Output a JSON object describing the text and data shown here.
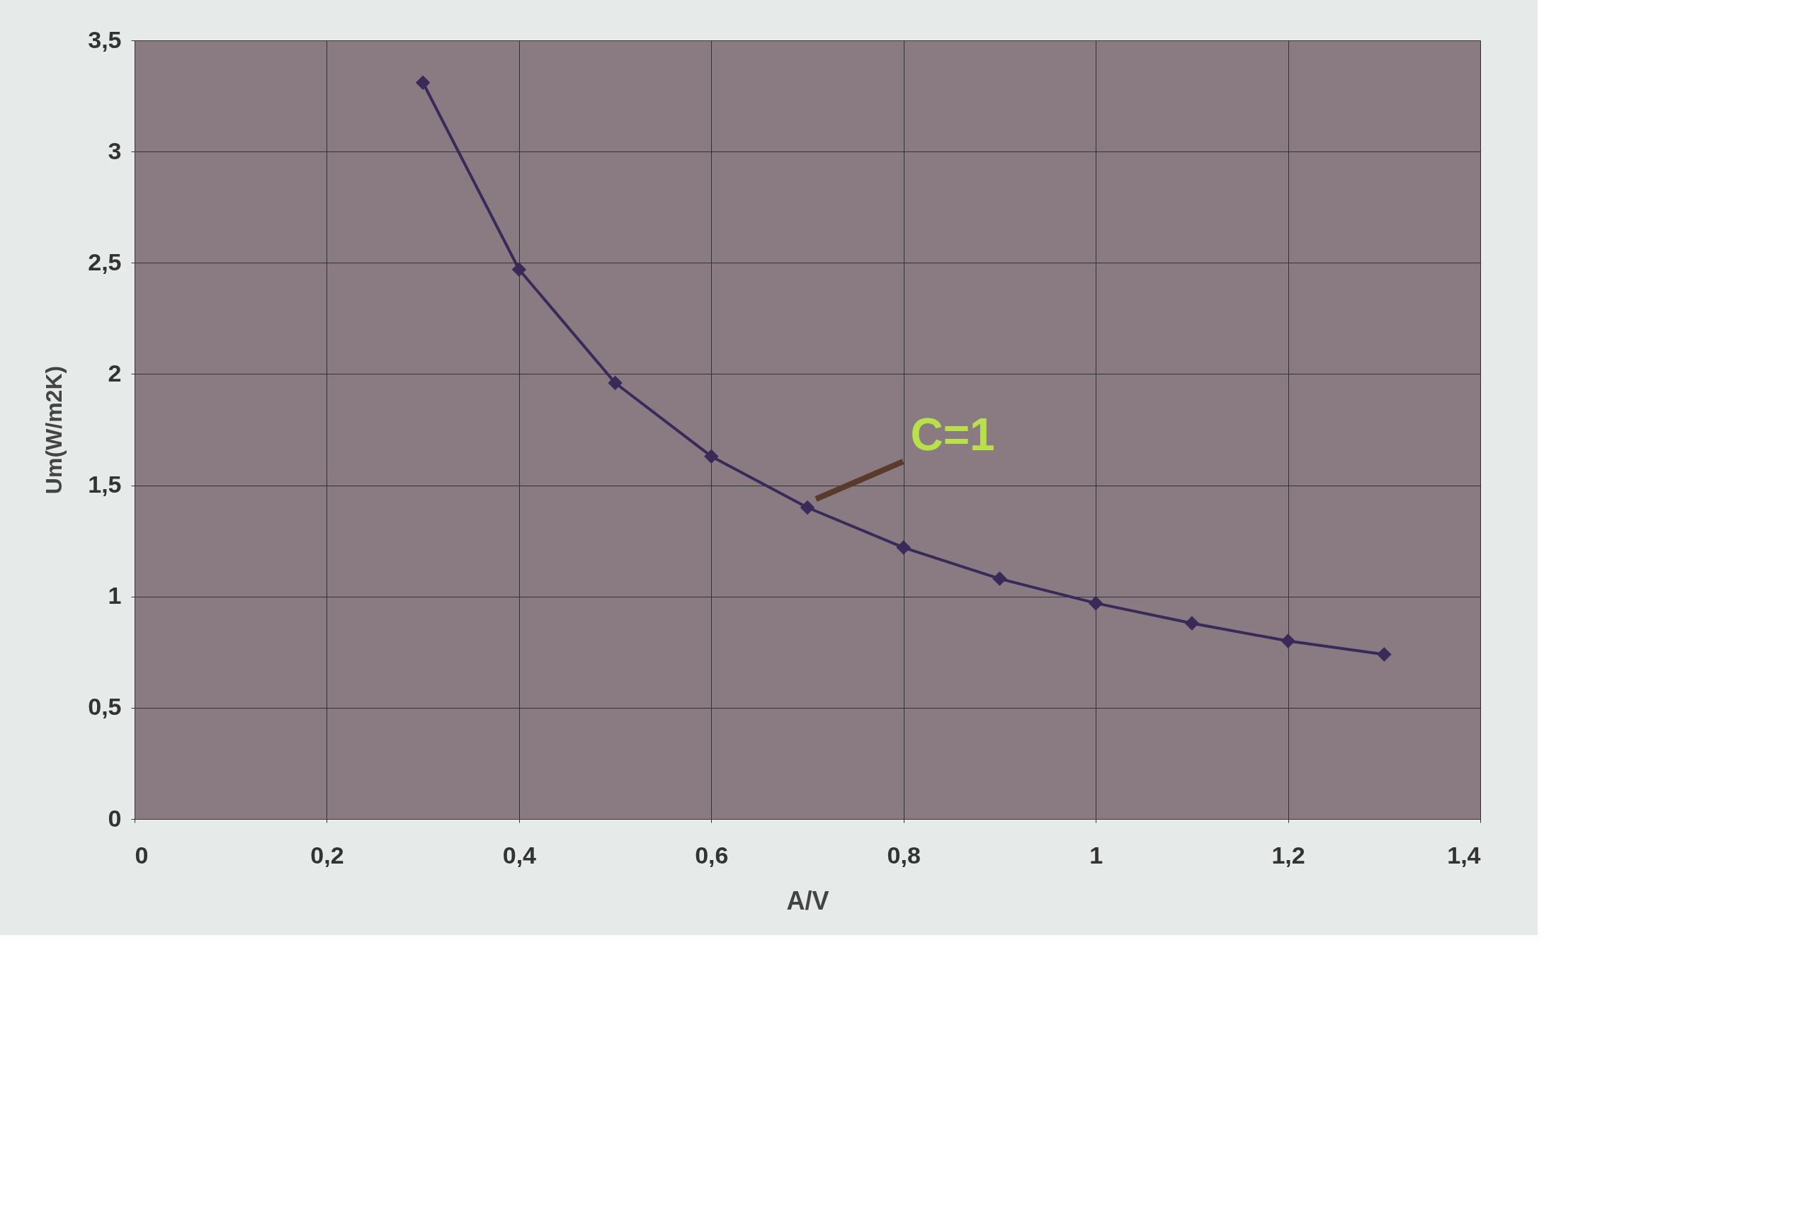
{
  "chart_data": {
    "type": "line",
    "xlabel": "A/V",
    "ylabel": "Um(W/m2K)",
    "x": [
      0.3,
      0.4,
      0.5,
      0.6,
      0.7,
      0.8,
      0.9,
      1.0,
      1.1,
      1.2,
      1.3
    ],
    "series": [
      {
        "color": "#3a2a5a",
        "values": [
          3.31,
          2.47,
          1.96,
          1.63,
          1.4,
          1.22,
          1.08,
          0.97,
          0.88,
          0.8,
          0.74
        ]
      }
    ],
    "xlim": [
      0,
      1.4
    ],
    "xticks": [
      0,
      {
        "value": 0.2,
        "label": "0,2"
      },
      {
        "value": 0.4,
        "label": "0,4"
      },
      {
        "value": 0.6,
        "label": "0,6"
      },
      {
        "value": 0.8,
        "label": "0,8"
      },
      1,
      {
        "value": 1.2,
        "label": "1,2"
      },
      {
        "value": 1.4,
        "label": "1,4"
      }
    ],
    "ylim": [
      0,
      3.5
    ],
    "yticks": [
      0,
      {
        "value": 0.5,
        "label": "0,5"
      },
      1,
      {
        "value": 1.5,
        "label": "1,5"
      },
      2,
      {
        "value": 2.5,
        "label": "2,5"
      },
      3,
      {
        "value": 3.5,
        "label": "3,5"
      }
    ],
    "grid": true,
    "marker": "diamond",
    "line_style": "solid",
    "annotations": [
      {
        "text": "C=1",
        "x": 0.7,
        "y": 1.4
      }
    ]
  }
}
